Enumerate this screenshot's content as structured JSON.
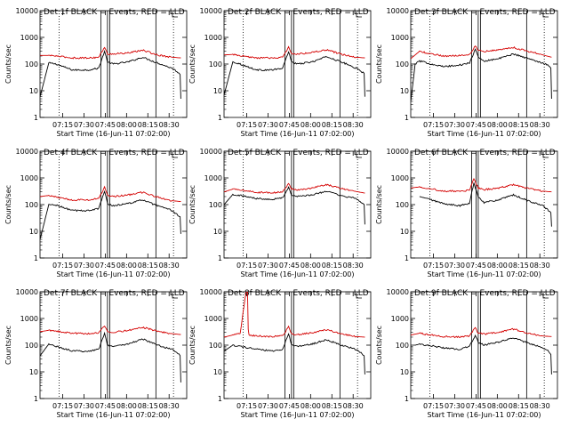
{
  "chart_data": [
    {
      "type": "line",
      "title": "Det 1f BLACK = Events, RED = LLD",
      "xlabel": "Start Time (16-Jun-11 07:02:00)",
      "ylabel": "Counts/sec",
      "xtick_labels": [
        "07:15",
        "07:30",
        "07:45",
        "08:00",
        "08:15",
        "08:30"
      ],
      "ytick_labels": [
        "1",
        "10",
        "100",
        "1000",
        "10000"
      ],
      "ylim": [
        1,
        10000
      ],
      "y_scale": "log",
      "series": [
        {
          "name": "BLACK = Events",
          "color": "#000000",
          "x": [
            0,
            0.06,
            0.11,
            0.22,
            0.33,
            0.4,
            0.44,
            0.46,
            0.5,
            0.6,
            0.7,
            0.8,
            0.9,
            0.94,
            0.955,
            0.96
          ],
          "y": [
            6,
            110,
            100,
            60,
            60,
            70,
            300,
            120,
            100,
            120,
            180,
            110,
            70,
            50,
            40,
            5
          ]
        },
        {
          "name": "RED = LLD",
          "color": "#d40000",
          "x": [
            0,
            0.06,
            0.11,
            0.22,
            0.33,
            0.4,
            0.44,
            0.46,
            0.5,
            0.6,
            0.7,
            0.8,
            0.9,
            0.96
          ],
          "y": [
            210,
            210,
            200,
            170,
            170,
            180,
            420,
            240,
            240,
            260,
            330,
            220,
            180,
            170
          ]
        }
      ]
    },
    {
      "type": "line",
      "title": "Det 2f BLACK = Events, RED = LLD",
      "xlabel": "Start Time (16-Jun-11 07:02:00)",
      "ylabel": "Counts/sec",
      "xtick_labels": [
        "07:15",
        "07:30",
        "07:45",
        "08:00",
        "08:15",
        "08:30"
      ],
      "ytick_labels": [
        "1",
        "10",
        "100",
        "1000",
        "10000"
      ],
      "ylim": [
        1,
        10000
      ],
      "y_scale": "log",
      "series": [
        {
          "name": "BLACK = Events",
          "color": "#000000",
          "x": [
            0,
            0.06,
            0.11,
            0.22,
            0.33,
            0.4,
            0.44,
            0.46,
            0.5,
            0.6,
            0.7,
            0.8,
            0.9,
            0.94,
            0.955,
            0.96
          ],
          "y": [
            7,
            120,
            100,
            60,
            60,
            70,
            300,
            120,
            100,
            120,
            190,
            120,
            70,
            50,
            45,
            6
          ]
        },
        {
          "name": "RED = LLD",
          "color": "#d40000",
          "x": [
            0,
            0.06,
            0.11,
            0.22,
            0.33,
            0.4,
            0.44,
            0.46,
            0.5,
            0.6,
            0.7,
            0.8,
            0.9,
            0.96
          ],
          "y": [
            220,
            230,
            200,
            170,
            170,
            180,
            420,
            240,
            240,
            270,
            340,
            230,
            180,
            170
          ]
        }
      ]
    },
    {
      "type": "line",
      "title": "Det 3f BLACK = Events, RED = LLD",
      "xlabel": "Start Time (16-Jun-11 07:02:00)",
      "ylabel": "Counts/sec",
      "xtick_labels": [
        "07:15",
        "07:30",
        "07:45",
        "08:00",
        "08:15",
        "08:30"
      ],
      "ytick_labels": [
        "1",
        "10",
        "100",
        "1000",
        "10000"
      ],
      "ylim": [
        1,
        10000
      ],
      "y_scale": "log",
      "series": [
        {
          "name": "BLACK = Events",
          "color": "#000000",
          "x": [
            0,
            0.03,
            0.06,
            0.11,
            0.22,
            0.33,
            0.4,
            0.44,
            0.46,
            0.5,
            0.6,
            0.7,
            0.8,
            0.9,
            0.94,
            0.955,
            0.96
          ],
          "y": [
            4,
            100,
            130,
            110,
            80,
            90,
            110,
            350,
            180,
            130,
            160,
            240,
            160,
            110,
            90,
            70,
            5
          ]
        },
        {
          "name": "RED = LLD",
          "color": "#d40000",
          "x": [
            0,
            0.06,
            0.11,
            0.22,
            0.33,
            0.4,
            0.44,
            0.46,
            0.5,
            0.6,
            0.7,
            0.8,
            0.9,
            0.96
          ],
          "y": [
            160,
            300,
            260,
            200,
            210,
            230,
            480,
            330,
            300,
            340,
            420,
            300,
            220,
            180
          ]
        }
      ]
    },
    {
      "type": "line",
      "title": "Det 4f BLACK = Events, RED = LLD",
      "xlabel": "Start Time (16-Jun-11 07:02:00)",
      "ylabel": "Counts/sec",
      "xtick_labels": [
        "07:15",
        "07:30",
        "07:45",
        "08:00",
        "08:15",
        "08:30"
      ],
      "ytick_labels": [
        "1",
        "10",
        "100",
        "1000",
        "10000"
      ],
      "ylim": [
        1,
        10000
      ],
      "y_scale": "log",
      "series": [
        {
          "name": "BLACK = Events",
          "color": "#000000",
          "x": [
            0,
            0.06,
            0.11,
            0.22,
            0.33,
            0.4,
            0.44,
            0.46,
            0.5,
            0.6,
            0.7,
            0.8,
            0.9,
            0.94,
            0.955,
            0.96
          ],
          "y": [
            5,
            100,
            95,
            60,
            60,
            70,
            330,
            110,
            90,
            110,
            150,
            90,
            60,
            40,
            35,
            8
          ]
        },
        {
          "name": "RED = LLD",
          "color": "#d40000",
          "x": [
            0,
            0.06,
            0.11,
            0.22,
            0.33,
            0.4,
            0.44,
            0.46,
            0.5,
            0.6,
            0.7,
            0.8,
            0.9,
            0.96
          ],
          "y": [
            200,
            220,
            190,
            150,
            150,
            170,
            440,
            220,
            200,
            230,
            290,
            190,
            140,
            130
          ]
        }
      ]
    },
    {
      "type": "line",
      "title": "Det 5f BLACK = Events, RED = LLD",
      "xlabel": "Start Time (16-Jun-11 07:02:00)",
      "ylabel": "Counts/sec",
      "xtick_labels": [
        "07:15",
        "07:30",
        "07:45",
        "08:00",
        "08:15",
        "08:30"
      ],
      "ytick_labels": [
        "1",
        "10",
        "100",
        "1000",
        "10000"
      ],
      "ylim": [
        1,
        10000
      ],
      "y_scale": "log",
      "series": [
        {
          "name": "BLACK = Events",
          "color": "#000000",
          "x": [
            0,
            0.06,
            0.11,
            0.22,
            0.33,
            0.4,
            0.44,
            0.46,
            0.5,
            0.6,
            0.7,
            0.8,
            0.9,
            0.94,
            0.955,
            0.96
          ],
          "y": [
            100,
            240,
            220,
            170,
            160,
            180,
            450,
            230,
            200,
            230,
            320,
            210,
            170,
            120,
            100,
            18
          ]
        },
        {
          "name": "RED = LLD",
          "color": "#d40000",
          "x": [
            0,
            0.06,
            0.11,
            0.22,
            0.33,
            0.4,
            0.44,
            0.46,
            0.5,
            0.6,
            0.7,
            0.8,
            0.9,
            0.96
          ],
          "y": [
            300,
            380,
            350,
            290,
            280,
            300,
            620,
            380,
            360,
            420,
            560,
            400,
            310,
            270
          ]
        }
      ]
    },
    {
      "type": "line",
      "title": "Det 6f BLACK = Events, RED = LLD",
      "xlabel": "Start Time (16-Jun-11 07:02:00)",
      "ylabel": "Counts/sec",
      "xtick_labels": [
        "07:15",
        "07:30",
        "07:45",
        "08:00",
        "08:15",
        "08:30"
      ],
      "ytick_labels": [
        "1",
        "10",
        "100",
        "1000",
        "10000"
      ],
      "ylim": [
        1,
        10000
      ],
      "y_scale": "log",
      "series": [
        {
          "name": "BLACK = Events",
          "color": "#000000",
          "x": [
            0.06,
            0.11,
            0.22,
            0.33,
            0.4,
            0.43,
            0.46,
            0.5,
            0.6,
            0.7,
            0.8,
            0.9,
            0.94,
            0.955,
            0.96
          ],
          "y": [
            200,
            170,
            110,
            90,
            110,
            650,
            200,
            120,
            150,
            230,
            140,
            90,
            60,
            50,
            15
          ]
        },
        {
          "name": "RED = LLD",
          "color": "#d40000",
          "x": [
            0,
            0.06,
            0.11,
            0.22,
            0.33,
            0.4,
            0.43,
            0.46,
            0.5,
            0.6,
            0.7,
            0.8,
            0.9,
            0.96
          ],
          "y": [
            420,
            460,
            420,
            320,
            320,
            340,
            900,
            420,
            360,
            420,
            560,
            400,
            320,
            300
          ]
        }
      ]
    },
    {
      "type": "line",
      "title": "Det 7f BLACK = Events, RED = LLD",
      "xlabel": "Start Time (16-Jun-11 07:02:00)",
      "ylabel": "Counts/sec",
      "xtick_labels": [
        "07:15",
        "07:30",
        "07:45",
        "08:00",
        "08:15",
        "08:30"
      ],
      "ytick_labels": [
        "1",
        "10",
        "100",
        "1000",
        "10000"
      ],
      "ylim": [
        1,
        10000
      ],
      "y_scale": "log",
      "series": [
        {
          "name": "BLACK = Events",
          "color": "#000000",
          "x": [
            0,
            0.06,
            0.11,
            0.22,
            0.33,
            0.4,
            0.44,
            0.46,
            0.5,
            0.6,
            0.7,
            0.8,
            0.9,
            0.94,
            0.955,
            0.96
          ],
          "y": [
            40,
            110,
            90,
            60,
            60,
            70,
            280,
            100,
            90,
            110,
            170,
            100,
            70,
            50,
            40,
            4
          ]
        },
        {
          "name": "RED = LLD",
          "color": "#d40000",
          "x": [
            0,
            0.06,
            0.11,
            0.22,
            0.33,
            0.4,
            0.44,
            0.46,
            0.5,
            0.6,
            0.7,
            0.8,
            0.9,
            0.96
          ],
          "y": [
            320,
            360,
            330,
            280,
            270,
            290,
            520,
            330,
            310,
            350,
            470,
            330,
            270,
            250
          ]
        }
      ]
    },
    {
      "type": "line",
      "title": "Det 8f BLACK = Events, RED = LLD",
      "xlabel": "Start Time (16-Jun-11 07:02:00)",
      "ylabel": "Counts/sec",
      "xtick_labels": [
        "07:15",
        "07:30",
        "07:45",
        "08:00",
        "08:15",
        "08:30"
      ],
      "ytick_labels": [
        "1",
        "10",
        "100",
        "1000",
        "10000"
      ],
      "ylim": [
        1,
        10000
      ],
      "y_scale": "log",
      "series": [
        {
          "name": "BLACK = Events",
          "color": "#000000",
          "x": [
            0,
            0.06,
            0.11,
            0.22,
            0.33,
            0.4,
            0.44,
            0.46,
            0.5,
            0.6,
            0.7,
            0.8,
            0.9,
            0.94,
            0.955,
            0.96
          ],
          "y": [
            60,
            100,
            90,
            70,
            60,
            70,
            280,
            100,
            90,
            110,
            160,
            100,
            70,
            50,
            40,
            8
          ]
        },
        {
          "name": "RED = LLD",
          "color": "#d40000",
          "x": [
            0,
            0.06,
            0.11,
            0.15,
            0.16,
            0.165,
            0.17,
            0.22,
            0.33,
            0.4,
            0.44,
            0.46,
            0.5,
            0.6,
            0.7,
            0.8,
            0.9,
            0.96
          ],
          "y": [
            200,
            240,
            280,
            10000,
            10000,
            400,
            240,
            220,
            210,
            230,
            480,
            260,
            250,
            290,
            380,
            260,
            210,
            200
          ]
        }
      ]
    },
    {
      "type": "line",
      "title": "Det 9f BLACK = Events, RED = LLD",
      "xlabel": "Start Time (16-Jun-11 07:02:00)",
      "ylabel": "Counts/sec",
      "xtick_labels": [
        "07:15",
        "07:30",
        "07:45",
        "08:00",
        "08:15",
        "08:30"
      ],
      "ytick_labels": [
        "1",
        "10",
        "100",
        "1000",
        "10000"
      ],
      "ylim": [
        1,
        10000
      ],
      "y_scale": "log",
      "series": [
        {
          "name": "BLACK = Events",
          "color": "#000000",
          "x": [
            0.03,
            0.06,
            0.11,
            0.22,
            0.33,
            0.4,
            0.44,
            0.46,
            0.5,
            0.6,
            0.7,
            0.8,
            0.9,
            0.94,
            0.955,
            0.96
          ],
          "y": [
            100,
            110,
            100,
            80,
            70,
            90,
            230,
            130,
            100,
            130,
            190,
            120,
            80,
            60,
            45,
            8
          ]
        },
        {
          "name": "RED = LLD",
          "color": "#d40000",
          "x": [
            0,
            0.06,
            0.11,
            0.22,
            0.33,
            0.4,
            0.44,
            0.46,
            0.5,
            0.6,
            0.7,
            0.8,
            0.9,
            0.96
          ],
          "y": [
            240,
            280,
            250,
            210,
            200,
            220,
            460,
            280,
            260,
            300,
            400,
            280,
            220,
            210
          ]
        }
      ]
    }
  ],
  "style": {
    "events_color": "#000000",
    "lld_color": "#d40000",
    "axis_color": "#000000"
  }
}
